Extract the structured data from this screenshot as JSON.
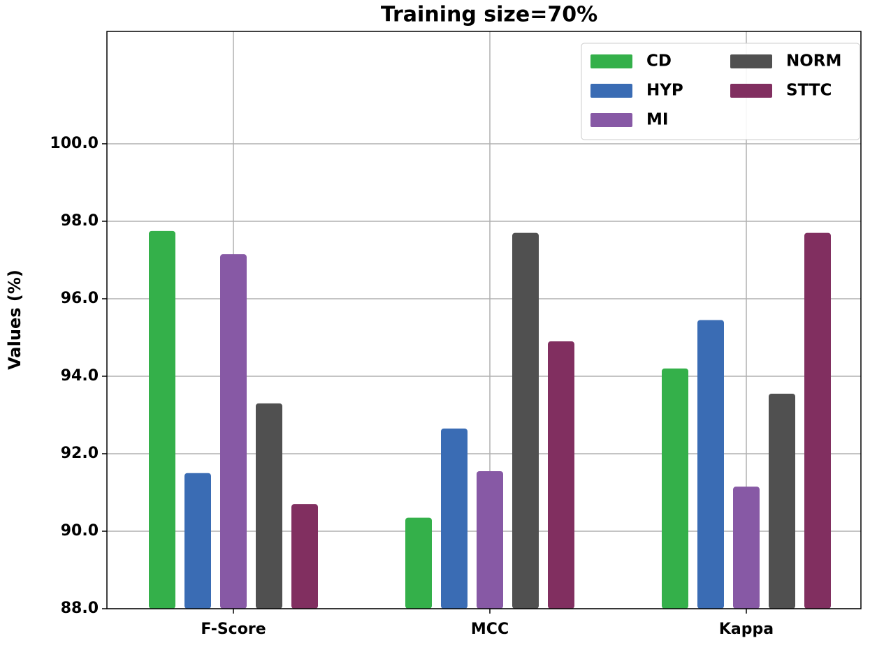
{
  "chart_data": {
    "type": "bar",
    "title": "Training size=70%",
    "y_label": "Values (%)",
    "categories": [
      "F-Score",
      "MCC",
      "Kappa"
    ],
    "series": [
      {
        "name": "CD",
        "color": "#34b04a",
        "values": [
          97.75,
          90.35,
          94.2
        ]
      },
      {
        "name": "HYP",
        "color": "#3a6cb4",
        "values": [
          91.5,
          92.65,
          95.45
        ]
      },
      {
        "name": "MI",
        "color": "#8759a5",
        "values": [
          97.15,
          91.55,
          91.15
        ]
      },
      {
        "name": "NORM",
        "color": "#505050",
        "values": [
          93.3,
          97.7,
          93.55
        ]
      },
      {
        "name": "STTC",
        "color": "#812f60",
        "values": [
          90.7,
          94.9,
          97.7
        ]
      }
    ],
    "ylim": [
      88,
      102.9
    ],
    "yticks": [
      {
        "value": 88,
        "label": "88.0"
      },
      {
        "value": 90,
        "label": "90.0"
      },
      {
        "value": 92,
        "label": "92.0"
      },
      {
        "value": 94,
        "label": "94.0"
      },
      {
        "value": 96,
        "label": "96.0"
      },
      {
        "value": 98,
        "label": "98.0"
      },
      {
        "value": 100,
        "label": "100.0"
      }
    ],
    "grid": true,
    "legend": "upper right"
  }
}
